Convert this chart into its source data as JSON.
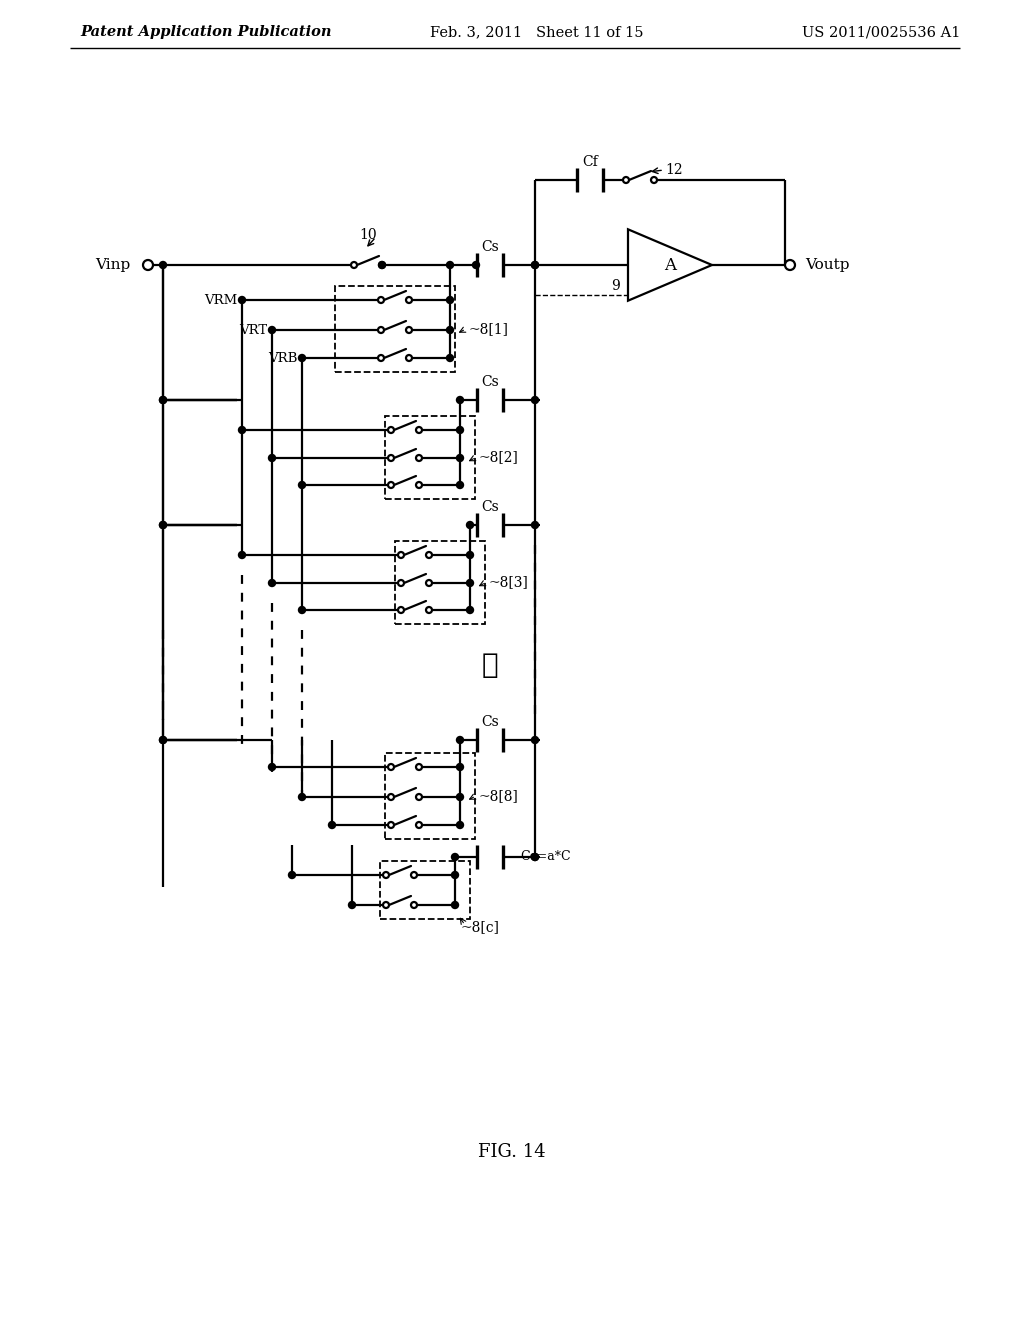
{
  "bg_color": "#ffffff",
  "header_left": "Patent Application Publication",
  "header_mid": "Feb. 3, 2011   Sheet 11 of 15",
  "header_right": "US 2011/0025536 A1",
  "fig_label": "FIG. 14"
}
